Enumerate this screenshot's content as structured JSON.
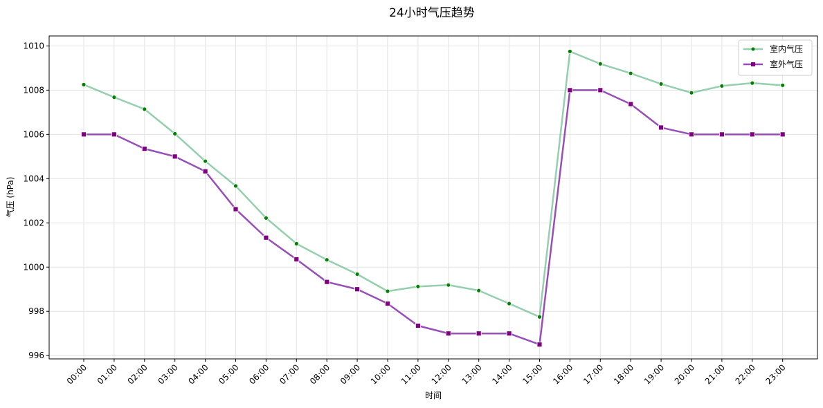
{
  "chart_data": {
    "type": "line",
    "title": "24小时气压趋势",
    "xlabel": "时间",
    "ylabel": "气压 (hPa)",
    "categories": [
      "00:00",
      "01:00",
      "02:00",
      "03:00",
      "04:00",
      "05:00",
      "06:00",
      "07:00",
      "08:00",
      "09:00",
      "10:00",
      "11:00",
      "12:00",
      "13:00",
      "14:00",
      "15:00",
      "16:00",
      "17:00",
      "18:00",
      "19:00",
      "20:00",
      "21:00",
      "22:00",
      "23:00"
    ],
    "yticks": [
      996,
      998,
      1000,
      1002,
      1004,
      1006,
      1008,
      1010
    ],
    "ylim": [
      995.85,
      1010.45
    ],
    "grid": true,
    "legend_position": "top-right",
    "series": [
      {
        "name": "室内气压",
        "color": "#66bb8c",
        "marker": "circle",
        "marker_color": "#008000",
        "values": [
          1008.25,
          1007.68,
          1007.14,
          1006.03,
          1004.79,
          1003.67,
          1002.22,
          1001.06,
          1000.33,
          999.68,
          998.91,
          999.12,
          999.19,
          998.94,
          998.35,
          997.75,
          1009.75,
          1009.19,
          1008.76,
          1008.28,
          1007.88,
          1008.19,
          1008.32,
          1008.22
        ]
      },
      {
        "name": "室外气压",
        "color": "#7e22a6",
        "marker": "square",
        "marker_color": "#800080",
        "values": [
          1006.0,
          1006.0,
          1005.35,
          1005.0,
          1004.33,
          1002.62,
          1001.33,
          1000.35,
          999.33,
          999.0,
          998.35,
          997.35,
          997.0,
          997.0,
          997.0,
          996.5,
          1008.0,
          1008.0,
          1007.37,
          1006.31,
          1006.0,
          1006.0,
          1006.0,
          1006.0
        ]
      }
    ]
  }
}
